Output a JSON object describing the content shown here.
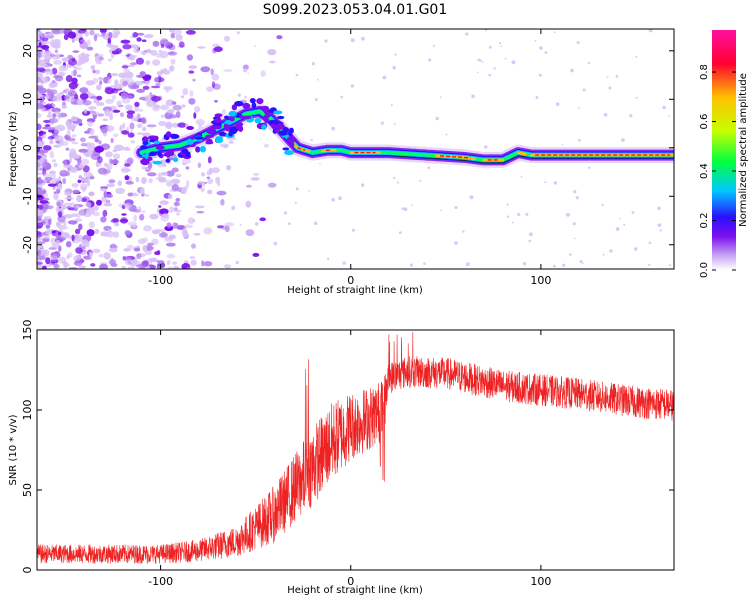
{
  "title": "S099.2023.053.04.01.G01",
  "chart_data": [
    {
      "type": "heatmap",
      "xlabel": "Height of straight line (km)",
      "ylabel": "Frequency (Hz)",
      "xlim": [
        -165,
        170
      ],
      "ylim": [
        -25,
        24.5
      ],
      "xticks": [
        -100,
        0,
        100
      ],
      "yticks": [
        20,
        10,
        0,
        -10,
        -20
      ],
      "colorbar": {
        "label": "Normalized spectral amplitude",
        "range": [
          0,
          0.97
        ],
        "ticks": [
          0.0,
          0.2,
          0.4,
          0.6,
          0.8
        ],
        "colormap": [
          "#ffffff",
          "#c9a6f5",
          "#7a10ee",
          "#2a10ff",
          "#00c8ff",
          "#00ff40",
          "#c8ff00",
          "#ffc000",
          "#ff0030",
          "#ff10a0"
        ]
      },
      "ridge": {
        "description_points_x": [
          -110,
          -100,
          -90,
          -80,
          -70,
          -60,
          -55,
          -48,
          -42,
          -35,
          -28,
          -20,
          -12,
          -5,
          0,
          20,
          40,
          60,
          70,
          80,
          88,
          95,
          110,
          140,
          170
        ],
        "frequency_y": [
          -1,
          0,
          0.5,
          2,
          4,
          6,
          7,
          7.5,
          6,
          3,
          0,
          -1,
          -0.5,
          -0.5,
          -1,
          -1,
          -1.5,
          -2,
          -2.5,
          -2.5,
          -1,
          -1.5,
          -1.5,
          -1.5,
          -1.5
        ]
      }
    },
    {
      "type": "line",
      "xlabel": "Height of straight line (km)",
      "ylabel": "SNR (10 * v/v)",
      "xlim": [
        -165,
        170
      ],
      "ylim": [
        0,
        150
      ],
      "xticks": [
        -100,
        0,
        100
      ],
      "yticks": [
        0,
        50,
        100,
        150
      ],
      "color": "#ee2222",
      "envelope": {
        "x": [
          -165,
          -100,
          -80,
          -60,
          -40,
          -30,
          -20,
          -10,
          0,
          10,
          17,
          20,
          30,
          50,
          80,
          120,
          150,
          170
        ],
        "mean_y": [
          10,
          10,
          12,
          18,
          35,
          50,
          65,
          80,
          90,
          95,
          100,
          120,
          124,
          123,
          115,
          110,
          105,
          103
        ],
        "spread": [
          6,
          6,
          7,
          10,
          18,
          22,
          25,
          25,
          22,
          20,
          20,
          10,
          10,
          10,
          10,
          10,
          10,
          10
        ]
      }
    }
  ]
}
